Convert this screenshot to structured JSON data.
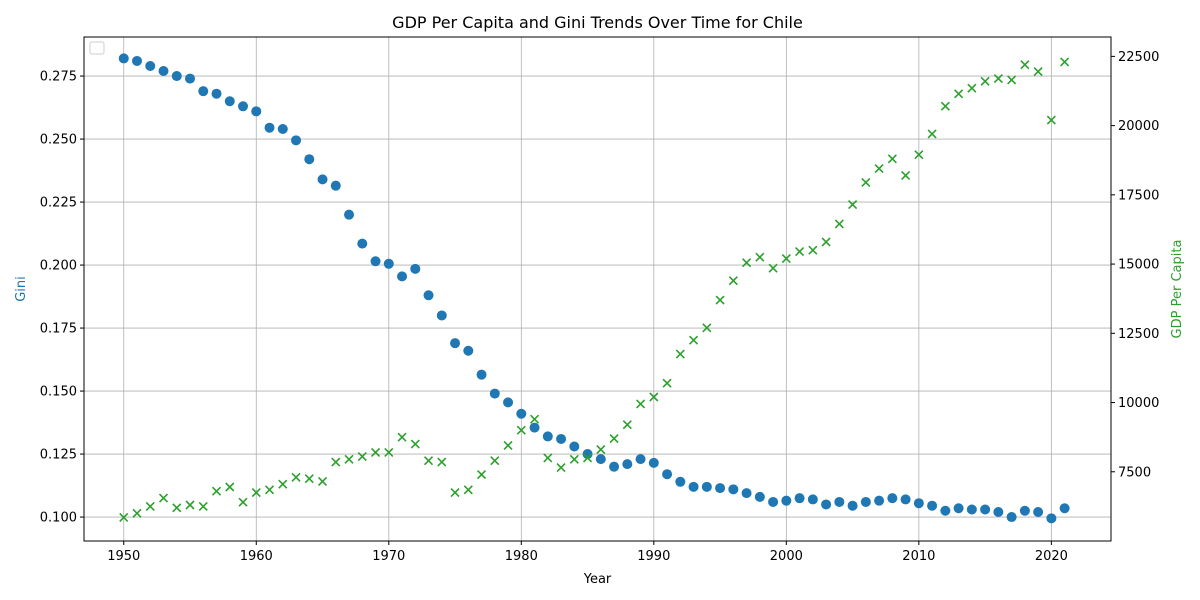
{
  "chart_data": {
    "type": "scatter",
    "title": "GDP Per Capita and Gini Trends Over Time for Chile",
    "xlabel": "Year",
    "ylabel_left": "Gini",
    "ylabel_right": "GDP Per Capita",
    "xlim": [
      1947,
      2024.5
    ],
    "ylim_left": [
      0.0905,
      0.2905
    ],
    "ylim_right": [
      5000,
      23200
    ],
    "x_ticks": [
      1950,
      1960,
      1970,
      1980,
      1990,
      2000,
      2010,
      2020
    ],
    "y_left_ticks": [
      "0.100",
      "0.125",
      "0.150",
      "0.175",
      "0.200",
      "0.225",
      "0.250",
      "0.275"
    ],
    "y_left_tick_values": [
      0.1,
      0.125,
      0.15,
      0.175,
      0.2,
      0.225,
      0.25,
      0.275
    ],
    "y_right_ticks": [
      "7500",
      "10000",
      "12500",
      "15000",
      "17500",
      "20000",
      "22500"
    ],
    "y_right_tick_values": [
      7500,
      10000,
      12500,
      15000,
      17500,
      20000,
      22500
    ],
    "grid": true,
    "legend": "top-left (empty)",
    "colors": {
      "gini": "#1f77b4",
      "gdp": "#2ca02c"
    },
    "series": [
      {
        "axis": "left",
        "marker": "circle",
        "x": [
          1950,
          1951,
          1952,
          1953,
          1954,
          1955,
          1956,
          1957,
          1958,
          1959,
          1960,
          1961,
          1962,
          1963,
          1964,
          1965,
          1966,
          1967,
          1968,
          1969,
          1970,
          1971,
          1972,
          1973,
          1974,
          1975,
          1976,
          1977,
          1978,
          1979,
          1980,
          1981,
          1982,
          1983,
          1984,
          1985,
          1986,
          1987,
          1988,
          1989,
          1990,
          1991,
          1992,
          1993,
          1994,
          1995,
          1996,
          1997,
          1998,
          1999,
          2000,
          2001,
          2002,
          2003,
          2004,
          2005,
          2006,
          2007,
          2008,
          2009,
          2010,
          2011,
          2012,
          2013,
          2014,
          2015,
          2016,
          2017,
          2018,
          2019,
          2020,
          2021
        ],
        "values": [
          0.282,
          0.281,
          0.279,
          0.277,
          0.275,
          0.274,
          0.269,
          0.268,
          0.265,
          0.263,
          0.261,
          0.2545,
          0.254,
          0.2495,
          0.242,
          0.234,
          0.2315,
          0.22,
          0.2085,
          0.2015,
          0.2005,
          0.1955,
          0.1985,
          0.188,
          0.18,
          0.169,
          0.166,
          0.1565,
          0.149,
          0.1455,
          0.141,
          0.1355,
          0.132,
          0.131,
          0.128,
          0.125,
          0.123,
          0.12,
          0.121,
          0.123,
          0.1215,
          0.117,
          0.114,
          0.112,
          0.112,
          0.1115,
          0.111,
          0.1095,
          0.108,
          0.106,
          0.1065,
          0.1075,
          0.107,
          0.105,
          0.106,
          0.1045,
          0.106,
          0.1065,
          0.1075,
          0.107,
          0.1055,
          0.1045,
          0.1025,
          0.1035,
          0.103,
          0.103,
          0.102,
          0.1,
          0.1025,
          0.102,
          0.0995,
          0.1035
        ]
      },
      {
        "axis": "right",
        "marker": "x",
        "x": [
          1950,
          1951,
          1952,
          1953,
          1954,
          1955,
          1956,
          1957,
          1958,
          1959,
          1960,
          1961,
          1962,
          1963,
          1964,
          1965,
          1966,
          1967,
          1968,
          1969,
          1970,
          1971,
          1972,
          1973,
          1974,
          1975,
          1976,
          1977,
          1978,
          1979,
          1980,
          1981,
          1982,
          1983,
          1984,
          1985,
          1986,
          1987,
          1988,
          1989,
          1990,
          1991,
          1992,
          1993,
          1994,
          1995,
          1996,
          1997,
          1998,
          1999,
          2000,
          2001,
          2002,
          2003,
          2004,
          2005,
          2006,
          2007,
          2008,
          2009,
          2010,
          2011,
          2012,
          2013,
          2014,
          2015,
          2016,
          2017,
          2018,
          2019,
          2020,
          2021
        ],
        "values": [
          5850,
          6000,
          6250,
          6550,
          6200,
          6300,
          6250,
          6800,
          6950,
          6400,
          6750,
          6850,
          7050,
          7300,
          7250,
          7150,
          7850,
          7950,
          8050,
          8200,
          8200,
          8750,
          8500,
          7900,
          7850,
          6750,
          6850,
          7400,
          7900,
          8450,
          9000,
          9400,
          8000,
          7650,
          7950,
          8000,
          8300,
          8700,
          9200,
          9950,
          10200,
          10700,
          11750,
          12250,
          12700,
          13700,
          14400,
          15050,
          15250,
          14850,
          15200,
          15450,
          15500,
          15800,
          16450,
          17150,
          17950,
          18450,
          18800,
          18200,
          18950,
          19700,
          20700,
          21150,
          21350,
          21600,
          21700,
          21650,
          22200,
          21950,
          20200,
          22300
        ]
      }
    ]
  }
}
